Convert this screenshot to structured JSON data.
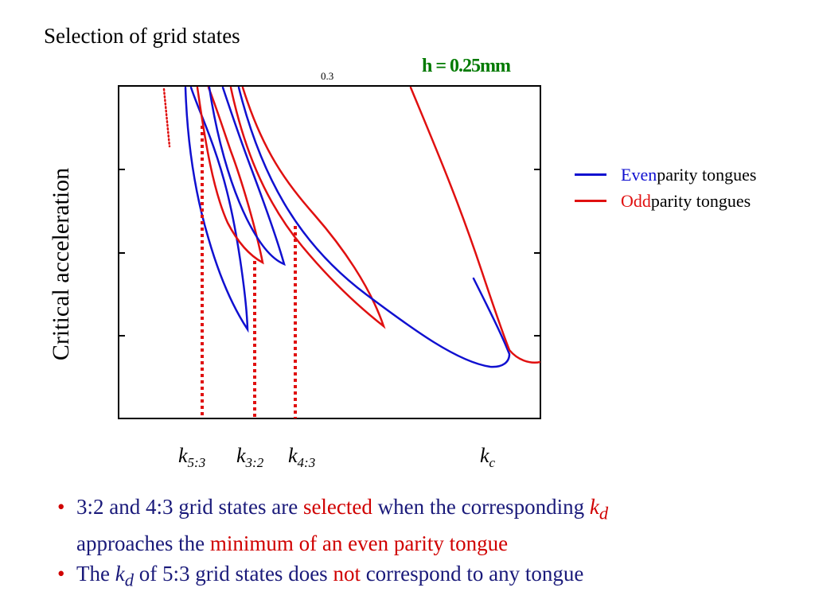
{
  "title": "Selection of grid states",
  "overlay_text": "h = 0.25mm",
  "chart_data": {
    "type": "line",
    "ylabel": "Critical acceleration",
    "top_tick_label": "0.3",
    "colors": {
      "even": "#1010d0",
      "odd": "#e01010"
    },
    "legend": [
      {
        "highlight": "Even",
        "rest": " parity tongues",
        "color": "#1010d0"
      },
      {
        "highlight": "Odd",
        "rest": " parity tongues",
        "color": "#e01010"
      }
    ],
    "markers": [
      {
        "k": "5:3",
        "label_base": "k",
        "label_sub": "5:3"
      },
      {
        "k": "3:2",
        "label_base": "k",
        "label_sub": "3:2"
      },
      {
        "k": "4:3",
        "label_base": "k",
        "label_sub": "4:3"
      },
      {
        "k": "c",
        "label_base": "k",
        "label_sub": "c"
      }
    ]
  },
  "bullets": {
    "b1_p1": "3:2 and 4:3 grid states are ",
    "b1_p2": "selected",
    "b1_p3": " when the corresponding ",
    "b1_k": "k",
    "b1_ksub": "d",
    "b1_p4": "approaches the ",
    "b1_p5": "minimum of an even parity tongue",
    "b2_p1": "The ",
    "b2_k": "k",
    "b2_ksub": "d",
    "b2_p2": " of  5:3  grid states does ",
    "b2_p3": "not",
    "b2_p4": " correspond to any tongue"
  }
}
